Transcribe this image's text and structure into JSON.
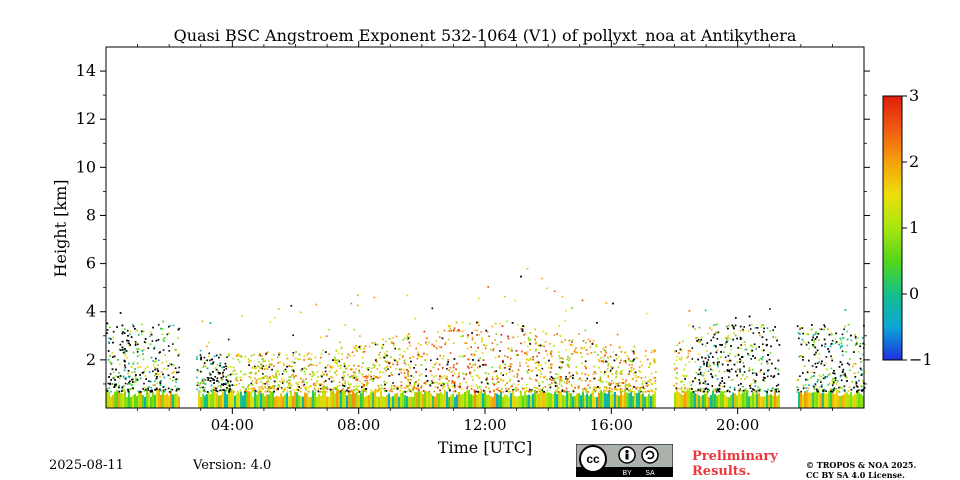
{
  "chart_data": {
    "type": "heatmap",
    "title": "Quasi BSC Angstroem Exponent 532-1064 (V1) of pollyxt_noa at Antikythera",
    "xlabel": "Time [UTC]",
    "ylabel": "Height [km]",
    "xlim_hours": [
      0,
      24
    ],
    "ylim_km": [
      0,
      15
    ],
    "x_ticks": [
      {
        "value": 4,
        "label": "04:00"
      },
      {
        "value": 8,
        "label": "08:00"
      },
      {
        "value": 12,
        "label": "12:00"
      },
      {
        "value": 16,
        "label": "16:00"
      },
      {
        "value": 20,
        "label": "20:00"
      }
    ],
    "y_ticks": [
      {
        "value": 2,
        "label": "2"
      },
      {
        "value": 4,
        "label": "4"
      },
      {
        "value": 6,
        "label": "6"
      },
      {
        "value": 8,
        "label": "8"
      },
      {
        "value": 10,
        "label": "10"
      },
      {
        "value": 12,
        "label": "12"
      },
      {
        "value": 14,
        "label": "14"
      }
    ],
    "colorbar": {
      "min": -1,
      "max": 3,
      "ticks": [
        {
          "value": -1,
          "label": "−1"
        },
        {
          "value": 0,
          "label": "0"
        },
        {
          "value": 1,
          "label": "1"
        },
        {
          "value": 2,
          "label": "2"
        },
        {
          "value": 3,
          "label": "3"
        }
      ],
      "colormap": [
        "#1f2fe0",
        "#0aa6d6",
        "#15c08a",
        "#53d61a",
        "#a8e60e",
        "#ecdf0a",
        "#f5a10c",
        "#f15a12",
        "#e01d0c"
      ]
    },
    "measurement_gaps_hours": [
      [
        2.3,
        2.85
      ],
      [
        17.4,
        17.95
      ],
      [
        21.3,
        21.85
      ]
    ],
    "typical_layer_top_km": 3.0
  },
  "footer": {
    "date": "2025-08-11",
    "version": "Version: 4.0",
    "preliminary": "Preliminary",
    "results": "Results.",
    "copyright_line1": "© TROPOS & NOA 2025.",
    "copyright_line2": "CC BY SA 4.0 License."
  },
  "license_badge": {
    "cc": "cc",
    "by": "BY",
    "sa": "SA"
  }
}
